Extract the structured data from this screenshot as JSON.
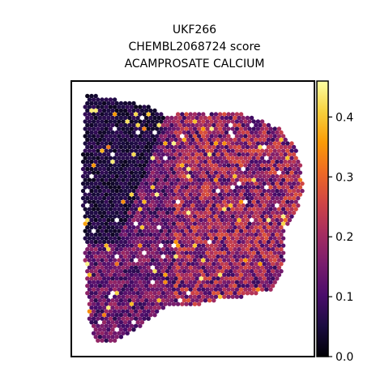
{
  "chart_data": {
    "type": "scatter",
    "subtype": "spatial-hexbin",
    "title_lines": [
      "UKF266",
      "CHEMBL2068724 score",
      "ACAMPROSATE CALCIUM"
    ],
    "xlabel": "",
    "ylabel": "",
    "axis_ticks_visible": false,
    "grid": false,
    "colormap": "inferno",
    "colorbar": {
      "range": [
        0.0,
        0.46
      ],
      "ticks": [
        0.0,
        0.1,
        0.2,
        0.3,
        0.4
      ],
      "tick_labels": [
        "0.0",
        "0.1",
        "0.2",
        "0.3",
        "0.4"
      ],
      "placement": "right"
    },
    "colors": {
      "inferno": [
        "#000004",
        "#1b0c41",
        "#4a0c6b",
        "#781c6d",
        "#a52c60",
        "#cf4446",
        "#ed6925",
        "#fb9b06",
        "#f7d13d",
        "#fcffa4"
      ]
    },
    "regions_note_values": {
      "dark_left_region_score": 0.02,
      "left_lower_region_score": 0.12,
      "right_region_score": 0.17,
      "max_observed_score": 0.45
    }
  }
}
